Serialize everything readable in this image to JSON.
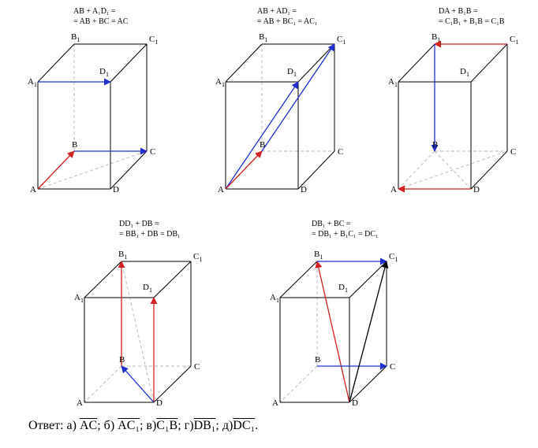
{
  "labels": {
    "A": "A",
    "B": "B",
    "C": "C",
    "D": "D",
    "A1": "A",
    "B1": "B",
    "C1": "C",
    "D1": "D",
    "sub1": "1"
  },
  "equations": {
    "a": [
      "AB + A₁D₁ =",
      "= AB + BC = AC"
    ],
    "b": [
      "AB + AD₁ =",
      "= AB + BC₁ = AC₁"
    ],
    "c": [
      "DA + B₁B =",
      "= C₁B₁ + B₁B = C₁B"
    ],
    "d": [
      "DD₁ + DB =",
      "= BB₁ + DB = DB₁"
    ],
    "e": [
      "DB₁ + BC =",
      "= DB₁ + B₁C₁ = DC₁"
    ]
  },
  "answer": {
    "prefix": "Ответ:",
    "parts": [
      {
        "tag": "а)",
        "vec": "AC",
        "sep": ";"
      },
      {
        "tag": "б)",
        "vec": "AC₁",
        "sep": ";"
      },
      {
        "tag": "в)",
        "vec": "C₁B",
        "sep": ";"
      },
      {
        "tag": "г)",
        "vec": "DB₁",
        "sep": ";"
      },
      {
        "tag": "д)",
        "vec": "DC₁",
        "sep": "."
      }
    ]
  },
  "colors": {
    "red": "#d42020",
    "blue": "#1f2fd0",
    "black": "#000000",
    "hidden": "#b5b5b5"
  }
}
